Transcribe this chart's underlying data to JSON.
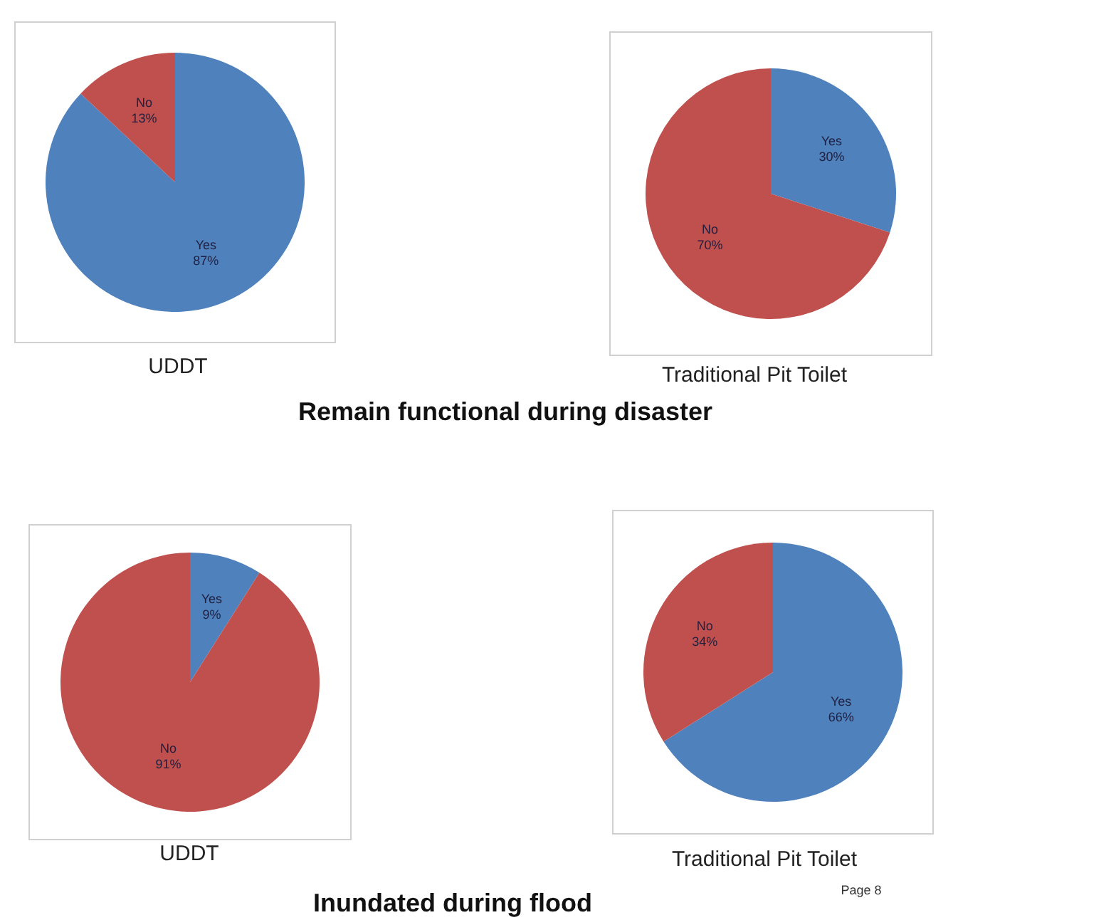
{
  "chart_data": [
    {
      "type": "pie",
      "xlabel": "UDDT",
      "categories": [
        "Yes",
        "No"
      ],
      "values": [
        87,
        13
      ],
      "colors": [
        "#4f81bd",
        "#c0504d"
      ],
      "value_labels": [
        "87%",
        "13%"
      ]
    },
    {
      "type": "pie",
      "xlabel": "Traditional Pit  Toilet",
      "categories": [
        "Yes",
        "No"
      ],
      "values": [
        30,
        70
      ],
      "colors": [
        "#4f81bd",
        "#c0504d"
      ],
      "value_labels": [
        "30%",
        "70%"
      ],
      "annotations": [
        "Remain functional during disaster"
      ]
    },
    {
      "type": "pie",
      "xlabel": "UDDT",
      "categories": [
        "Yes",
        "No"
      ],
      "values": [
        9,
        91
      ],
      "colors": [
        "#4f81bd",
        "#c0504d"
      ],
      "value_labels": [
        "9%",
        "91%"
      ]
    },
    {
      "type": "pie",
      "xlabel": "Traditional Pit  Toilet",
      "categories": [
        "Yes",
        "No"
      ],
      "values": [
        66,
        34
      ],
      "colors": [
        "#4f81bd",
        "#c0504d"
      ],
      "value_labels": [
        "66%",
        "34%"
      ],
      "annotations": [
        "Inundated during flood",
        "Page 8"
      ]
    }
  ]
}
